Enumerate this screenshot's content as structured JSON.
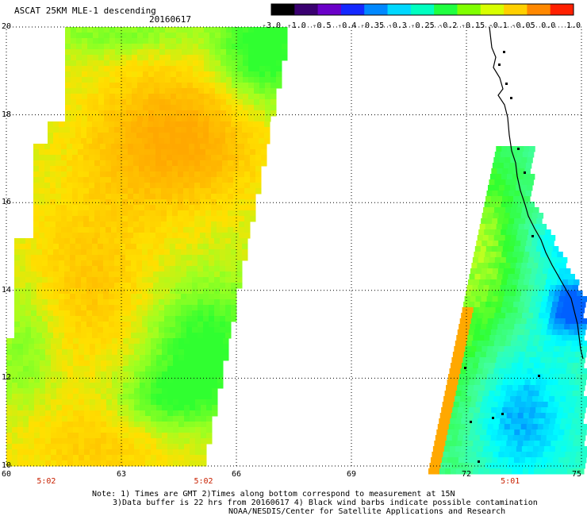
{
  "header": {
    "title": "ASCAT 25KM MLE-1 descending",
    "date": "20160617"
  },
  "colorbar": {
    "labels": [
      "-3.0",
      "-1.0",
      "-0.5",
      "-0.4",
      "-0.35",
      "-0.3",
      "-0.25",
      "-0.2",
      "-0.15",
      "-0.1",
      "-0.05",
      "0.0",
      "1.0"
    ],
    "colors": [
      "#000000",
      "#3a0070",
      "#6a00c8",
      "#1428ff",
      "#0088ff",
      "#00d8ff",
      "#00ffc0",
      "#20ff40",
      "#80ff00",
      "#d8ff00",
      "#ffd000",
      "#ff8800",
      "#ff2000"
    ]
  },
  "map": {
    "lon_ticks": [
      "60",
      "63",
      "66",
      "69",
      "72",
      "75"
    ],
    "lat_ticks": [
      "10",
      "12",
      "14",
      "16",
      "18",
      "20"
    ],
    "lon_range": [
      60,
      75
    ],
    "lat_range": [
      10,
      20
    ],
    "grid": "dotted",
    "colors": {
      "yellow": "#ffe000",
      "orange": "#ffa800",
      "green": "#30ff30",
      "cyan": "#00ffff",
      "blue": "#0060ff"
    }
  },
  "time_labels": [
    {
      "text": "5:02",
      "lon": 61.0
    },
    {
      "text": "5:02",
      "lon": 65.1
    },
    {
      "text": "5:01",
      "lon": 73.1
    }
  ],
  "time_label_color": "#c82000",
  "footer": {
    "line1": "Note: 1) Times are GMT 2)Times along bottom correspond to measurement at 15N",
    "line2": "3)Data buffer is 22 hrs from 20160617 4) Black wind barbs indicate possible contamination",
    "line3": "NOAA/NESDIS/Center for Satellite Applications and Research"
  }
}
